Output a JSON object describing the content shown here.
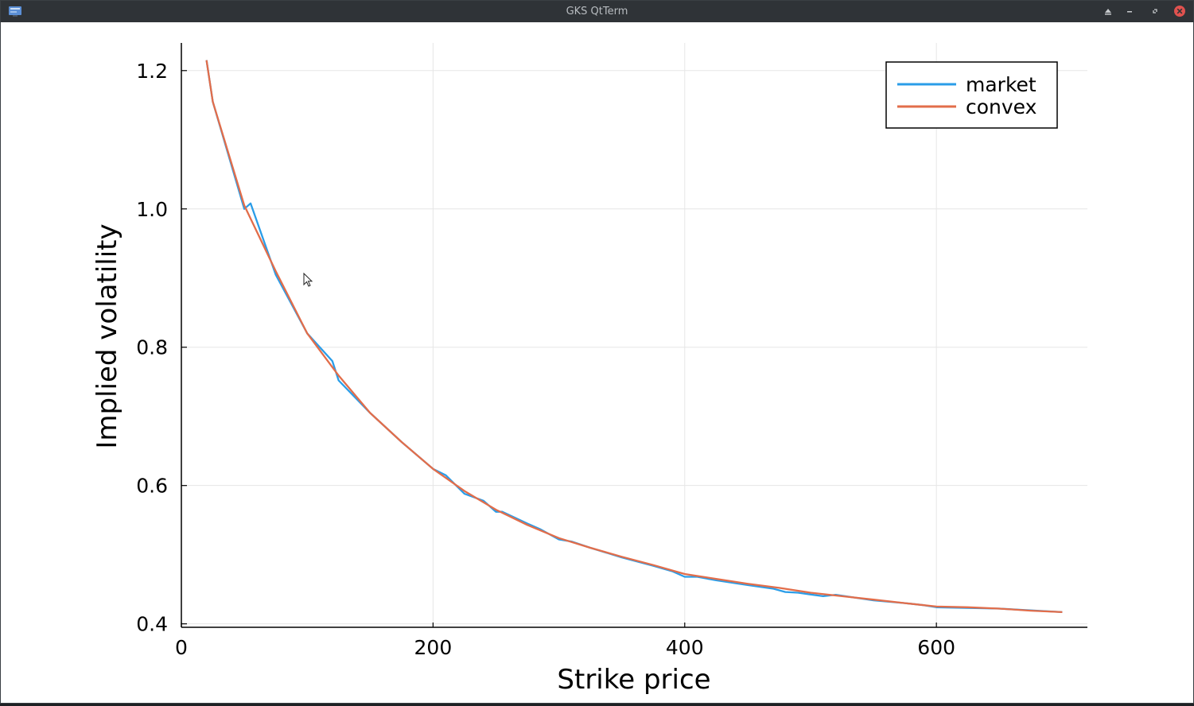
{
  "window": {
    "title": "GKS QtTerm",
    "icons": [
      "app-icon",
      "shade-icon",
      "minimize-icon",
      "restore-icon",
      "close-icon"
    ]
  },
  "chart_data": {
    "type": "line",
    "xlabel": "Strike price",
    "ylabel": "Implied volatility",
    "xlim": [
      0,
      720
    ],
    "ylim": [
      0.395,
      1.24
    ],
    "xticks": [
      0,
      200,
      400,
      600
    ],
    "xtick_labels": [
      "0",
      "200",
      "400",
      "600"
    ],
    "yticks": [
      0.4,
      0.6,
      0.8,
      1.0,
      1.2
    ],
    "ytick_labels": [
      "0.4",
      "0.6",
      "0.8",
      "1.0",
      "1.2"
    ],
    "grid": true,
    "legend_position": "top-right",
    "series": [
      {
        "name": "market",
        "color": "#2a9de8",
        "x": [
          20,
          25,
          50,
          55,
          75,
          100,
          120,
          125,
          150,
          175,
          200,
          210,
          225,
          240,
          250,
          255,
          275,
          285,
          300,
          310,
          325,
          350,
          375,
          390,
          400,
          410,
          425,
          450,
          470,
          480,
          490,
          510,
          520,
          550,
          575,
          590,
          600,
          650,
          680,
          700
        ],
        "y": [
          1.215,
          1.155,
          1.0,
          1.008,
          0.905,
          0.82,
          0.78,
          0.752,
          0.705,
          0.663,
          0.624,
          0.615,
          0.588,
          0.578,
          0.562,
          0.562,
          0.545,
          0.537,
          0.522,
          0.519,
          0.51,
          0.496,
          0.484,
          0.476,
          0.468,
          0.468,
          0.463,
          0.456,
          0.451,
          0.446,
          0.445,
          0.44,
          0.442,
          0.434,
          0.43,
          0.427,
          0.424,
          0.422,
          0.419,
          0.417
        ]
      },
      {
        "name": "convex",
        "color": "#e26d4a",
        "x": [
          20,
          25,
          50,
          75,
          100,
          125,
          150,
          175,
          200,
          225,
          250,
          275,
          300,
          325,
          350,
          375,
          400,
          425,
          450,
          475,
          500,
          525,
          550,
          575,
          600,
          625,
          650,
          675,
          700
        ],
        "y": [
          1.215,
          1.155,
          1.005,
          0.91,
          0.82,
          0.759,
          0.705,
          0.663,
          0.624,
          0.592,
          0.565,
          0.543,
          0.524,
          0.51,
          0.497,
          0.485,
          0.472,
          0.465,
          0.458,
          0.452,
          0.445,
          0.44,
          0.435,
          0.43,
          0.425,
          0.424,
          0.422,
          0.419,
          0.417
        ]
      }
    ]
  }
}
